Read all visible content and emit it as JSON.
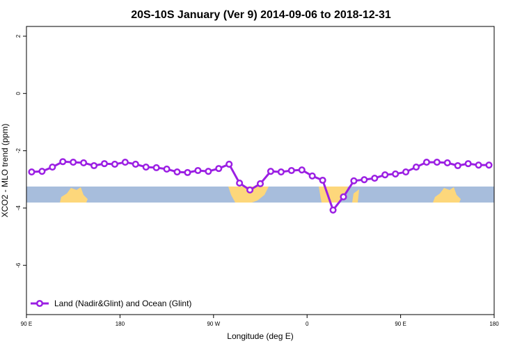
{
  "chart_data": {
    "type": "line",
    "title": "20S-10S January (Ver 9)   2014-09-06 to 2018-12-31",
    "xlabel": "Longitude (deg E)",
    "ylabel": "XCO2 - MLO trend (ppm)",
    "x": [
      95,
      105,
      115,
      125,
      135,
      145,
      155,
      165,
      175,
      185,
      195,
      205,
      215,
      225,
      235,
      245,
      255,
      265,
      275,
      285,
      295,
      305,
      315,
      325,
      335,
      345,
      355,
      365,
      375,
      385,
      395,
      405,
      415,
      425,
      435,
      445,
      455,
      465,
      475,
      485,
      495,
      505,
      515,
      525,
      535
    ],
    "series": [
      {
        "name": "Land (Nadir&Glint) and Ocean (Glint)",
        "color": "#9b1fe3",
        "values": [
          -2.74,
          -2.72,
          -2.57,
          -2.38,
          -2.4,
          -2.42,
          -2.52,
          -2.45,
          -2.47,
          -2.4,
          -2.47,
          -2.57,
          -2.59,
          -2.64,
          -2.74,
          -2.76,
          -2.69,
          -2.72,
          -2.62,
          -2.47,
          -3.13,
          -3.37,
          -3.15,
          -2.72,
          -2.74,
          -2.69,
          -2.67,
          -2.88,
          -3.03,
          -4.07,
          -3.61,
          -3.05,
          -3.01,
          -2.96,
          -2.84,
          -2.81,
          -2.74,
          -2.57,
          -2.4,
          -2.4,
          -2.42,
          -2.52,
          -2.45,
          -2.5,
          -2.5
        ]
      }
    ],
    "xlim": [
      90,
      540
    ],
    "xticks": [
      {
        "value": 90,
        "label": "90 E"
      },
      180,
      {
        "value": 270,
        "label": "90 W"
      },
      {
        "value": 360,
        "label": "0"
      },
      {
        "value": 450,
        "label": "90 E"
      },
      {
        "value": 540,
        "label": "180"
      }
    ],
    "ylim": [
      -7.72,
      2.34
    ],
    "yticks": [
      2,
      0,
      -2,
      -4,
      -6
    ],
    "legend": "bottom left"
  }
}
